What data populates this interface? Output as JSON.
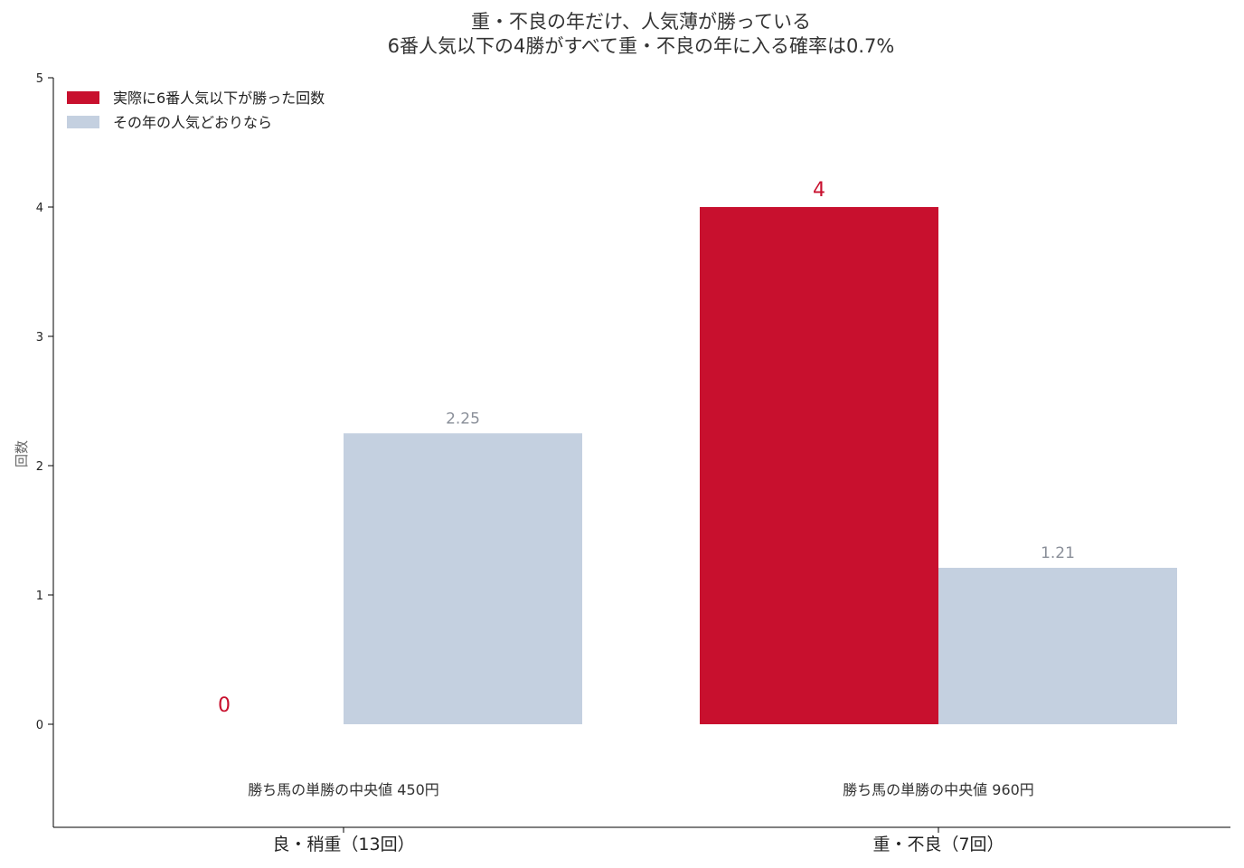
{
  "chart_data": {
    "type": "bar",
    "title": "重・不良の年だけ、人気薄が勝っている",
    "subtitle": "6番人気以下の4勝がすべて重・不良の年に入る確率は0.7%",
    "ylabel": "回数",
    "xlabel": "",
    "ylim": [
      -0.8,
      5
    ],
    "yticks": [
      0,
      1,
      2,
      3,
      4,
      5
    ],
    "yticks_text": [
      "0",
      "1",
      "2",
      "3",
      "4",
      "5"
    ],
    "grid": false,
    "legend_position": "top-left",
    "categories": [
      "良・稍重（13回）",
      "重・不良（7回）"
    ],
    "category_notes": [
      "勝ち馬の単勝の中央値 450円",
      "勝ち馬の単勝の中央値 960円"
    ],
    "series": [
      {
        "name": "実際に6番人気以下が勝った回数",
        "color": "#c8102e",
        "values": [
          0,
          4
        ],
        "labels": [
          "0",
          "4"
        ]
      },
      {
        "name": "その年の人気どおりなら",
        "color": "#c4d0e0",
        "label_color": "#8a8f99",
        "values": [
          2.25,
          1.21
        ],
        "labels": [
          "2.25",
          "1.21"
        ]
      }
    ]
  }
}
